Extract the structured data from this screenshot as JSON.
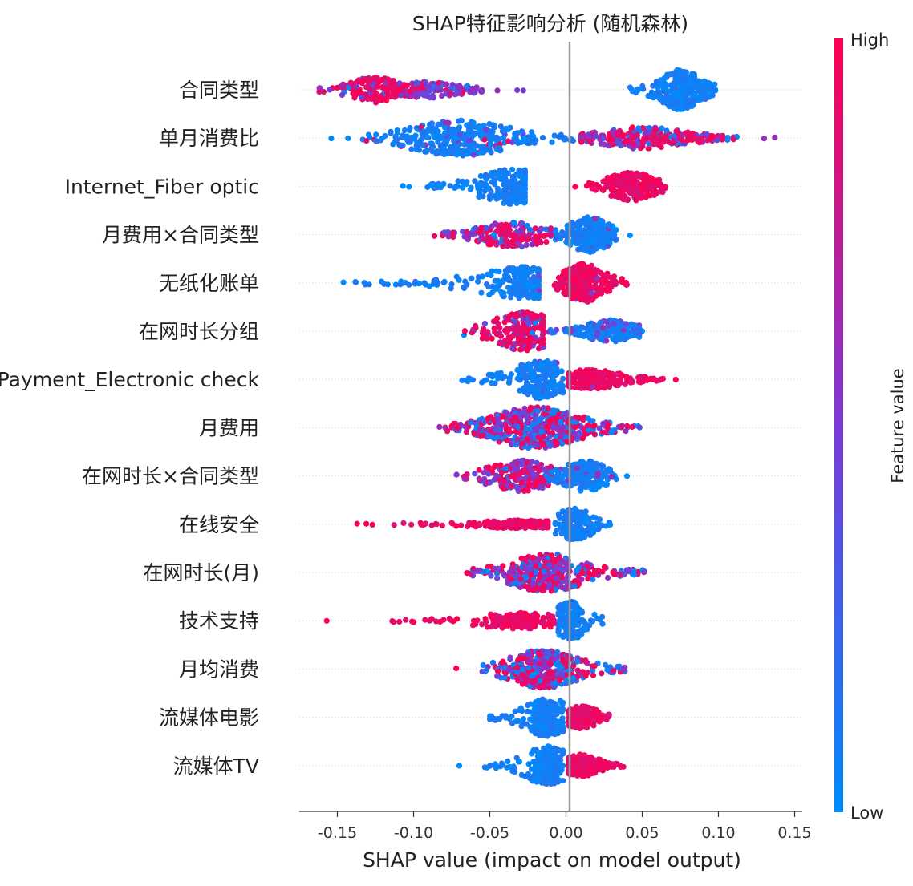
{
  "chart_data": {
    "type": "scatter",
    "subtype": "shap-beeswarm",
    "title": "SHAP特征影响分析 (随机森林)",
    "xlabel": "SHAP value (impact on model output)",
    "xlim": [
      -0.175,
      0.155
    ],
    "x_ticks": [
      -0.15,
      -0.1,
      -0.05,
      0.0,
      0.05,
      0.1,
      0.15
    ],
    "x_tick_labels": [
      "-0.15",
      "-0.10",
      "-0.05",
      "0.00",
      "0.05",
      "0.10",
      "0.15"
    ],
    "colorbar": {
      "label": "Feature value",
      "high_label": "High",
      "low_label": "Low",
      "high_color": "#ff0051",
      "mid_color": "#7b3bd6",
      "low_color": "#008bfb"
    },
    "zero_line_color": "#999999",
    "grid": false,
    "features": [
      {
        "name": "合同类型",
        "groups": [
          {
            "type": "spread",
            "min": -0.162,
            "max": -0.095,
            "center": -0.125,
            "sigma": 0.01,
            "tail": 0.015,
            "n": 170,
            "halfw": 16,
            "mix": [
              0.85,
              0.1,
              0.05
            ]
          },
          {
            "type": "spread",
            "min": -0.11,
            "max": -0.055,
            "center": -0.09,
            "sigma": 0.013,
            "tail": 0.02,
            "n": 130,
            "halfw": 10,
            "mix": [
              0.1,
              0.8,
              0.1
            ]
          },
          {
            "type": "spread",
            "min": 0.042,
            "max": 0.098,
            "center": 0.075,
            "sigma": 0.009,
            "tail": 0.012,
            "n": 260,
            "halfw": 25,
            "mix": [
              0.0,
              0.0,
              1.0
            ]
          }
        ],
        "outliers": [
          {
            "x": -0.045,
            "v": 0.6
          },
          {
            "x": -0.032,
            "v": 0.5
          },
          {
            "x": -0.028,
            "v": 0.5
          },
          {
            "x": 0.043,
            "v": 0.0
          },
          {
            "x": 0.047,
            "v": 0.0
          }
        ]
      },
      {
        "name": "单月消费比",
        "groups": [
          {
            "type": "spread",
            "min": -0.135,
            "max": 0.005,
            "center": -0.07,
            "sigma": 0.025,
            "tail": 0.03,
            "n": 330,
            "halfw": 22,
            "mix": [
              0.05,
              0.05,
              0.9
            ]
          },
          {
            "type": "spread",
            "min": 0.01,
            "max": 0.112,
            "center": 0.05,
            "sigma": 0.025,
            "tail": 0.025,
            "n": 260,
            "halfw": 14,
            "mix": [
              0.55,
              0.3,
              0.15
            ]
          }
        ],
        "outliers": [
          {
            "x": -0.154,
            "v": 0.0
          },
          {
            "x": -0.143,
            "v": 0.0
          },
          {
            "x": 0.13,
            "v": 0.6
          },
          {
            "x": 0.137,
            "v": 0.6
          }
        ]
      },
      {
        "name": "Internet_Fiber optic",
        "groups": [
          {
            "type": "spread",
            "min": -0.092,
            "max": -0.027,
            "center": -0.035,
            "sigma": 0.012,
            "tail": 0.02,
            "n": 220,
            "halfw": 22,
            "mix": [
              0.0,
              0.0,
              1.0
            ]
          },
          {
            "type": "spread",
            "min": 0.012,
            "max": 0.065,
            "center": 0.043,
            "sigma": 0.009,
            "tail": 0.015,
            "n": 220,
            "halfw": 18,
            "mix": [
              1.0,
              0.0,
              0.0
            ]
          }
        ],
        "outliers": [
          {
            "x": -0.107,
            "v": 0.0
          },
          {
            "x": -0.103,
            "v": 0.0
          },
          {
            "x": 0.006,
            "v": 1.0
          }
        ]
      },
      {
        "name": "月费用×合同类型",
        "groups": [
          {
            "type": "spread",
            "min": -0.09,
            "max": -0.01,
            "center": -0.035,
            "sigma": 0.015,
            "tail": 0.02,
            "n": 190,
            "halfw": 16,
            "mix": [
              0.6,
              0.3,
              0.1
            ]
          },
          {
            "type": "spread",
            "min": -0.008,
            "max": 0.033,
            "center": 0.015,
            "sigma": 0.008,
            "tail": 0.012,
            "n": 230,
            "halfw": 22,
            "mix": [
              0.0,
              0.05,
              0.95
            ]
          }
        ],
        "outliers": [
          {
            "x": 0.042,
            "v": 0.0
          }
        ]
      },
      {
        "name": "无纸化账单",
        "groups": [
          {
            "type": "spread",
            "min": -0.142,
            "max": -0.018,
            "center": -0.027,
            "sigma": 0.01,
            "tail": 0.03,
            "n": 230,
            "halfw": 20,
            "mix": [
              0.0,
              0.02,
              0.98
            ]
          },
          {
            "type": "spread",
            "min": -0.008,
            "max": 0.04,
            "center": 0.012,
            "sigma": 0.008,
            "tail": 0.012,
            "n": 260,
            "halfw": 24,
            "mix": [
              0.95,
              0.05,
              0.0
            ]
          }
        ],
        "outliers": [
          {
            "x": -0.146,
            "v": 0.0
          }
        ]
      },
      {
        "name": "在网时长分组",
        "groups": [
          {
            "type": "spread",
            "min": -0.068,
            "max": -0.015,
            "center": -0.027,
            "sigma": 0.008,
            "tail": 0.02,
            "n": 220,
            "halfw": 24,
            "mix": [
              0.75,
              0.2,
              0.05
            ]
          },
          {
            "type": "spread",
            "min": -0.015,
            "max": 0.048,
            "center": 0.03,
            "sigma": 0.012,
            "tail": 0.015,
            "n": 200,
            "halfw": 14,
            "mix": [
              0.0,
              0.25,
              0.75
            ]
          }
        ],
        "outliers": [
          {
            "x": 0.05,
            "v": 0.0
          }
        ]
      },
      {
        "name": "Payment_Electronic check",
        "groups": [
          {
            "type": "spread",
            "min": -0.072,
            "max": -0.002,
            "center": -0.016,
            "sigma": 0.007,
            "tail": 0.018,
            "n": 230,
            "halfw": 24,
            "mix": [
              0.0,
              0.02,
              0.98
            ]
          },
          {
            "type": "spread",
            "min": 0.002,
            "max": 0.068,
            "center": 0.015,
            "sigma": 0.012,
            "tail": 0.02,
            "n": 200,
            "halfw": 12,
            "mix": [
              0.98,
              0.02,
              0.0
            ]
          }
        ],
        "outliers": [
          {
            "x": 0.072,
            "v": 1.0
          }
        ]
      },
      {
        "name": "月费用",
        "groups": [
          {
            "type": "spread",
            "min": -0.08,
            "max": 0.05,
            "center": -0.02,
            "sigma": 0.018,
            "tail": 0.025,
            "n": 520,
            "halfw": 26,
            "mix": [
              0.4,
              0.3,
              0.3
            ]
          }
        ],
        "outliers": [
          {
            "x": -0.083,
            "v": 0.6
          }
        ]
      },
      {
        "name": "在网时长×合同类型",
        "groups": [
          {
            "type": "spread",
            "min": -0.072,
            "max": -0.01,
            "center": -0.03,
            "sigma": 0.011,
            "tail": 0.018,
            "n": 200,
            "halfw": 20,
            "mix": [
              0.55,
              0.4,
              0.05
            ]
          },
          {
            "type": "spread",
            "min": -0.012,
            "max": 0.033,
            "center": 0.012,
            "sigma": 0.008,
            "tail": 0.012,
            "n": 200,
            "halfw": 20,
            "mix": [
              0.0,
              0.05,
              0.95
            ]
          }
        ],
        "outliers": [
          {
            "x": 0.04,
            "v": 0.0
          }
        ]
      },
      {
        "name": "在线安全",
        "groups": [
          {
            "type": "spread",
            "min": -0.12,
            "max": -0.012,
            "center": -0.03,
            "sigma": 0.015,
            "tail": 0.03,
            "n": 180,
            "halfw": 5,
            "mix": [
              1.0,
              0.0,
              0.0
            ]
          },
          {
            "type": "spread",
            "min": -0.007,
            "max": 0.03,
            "center": 0.005,
            "sigma": 0.006,
            "tail": 0.012,
            "n": 170,
            "halfw": 20,
            "mix": [
              0.0,
              0.0,
              1.0
            ]
          }
        ],
        "outliers": [
          {
            "x": -0.137,
            "v": 1.0
          },
          {
            "x": -0.131,
            "v": 1.0
          },
          {
            "x": -0.127,
            "v": 1.0
          }
        ]
      },
      {
        "name": "在网时长(月)",
        "groups": [
          {
            "type": "spread",
            "min": -0.063,
            "max": 0.052,
            "center": -0.013,
            "sigma": 0.013,
            "tail": 0.022,
            "n": 380,
            "halfw": 24,
            "mix": [
              0.45,
              0.35,
              0.2
            ]
          }
        ],
        "outliers": [
          {
            "x": -0.065,
            "v": 1.0
          }
        ]
      },
      {
        "name": "技术支持",
        "groups": [
          {
            "type": "spread",
            "min": -0.115,
            "max": -0.008,
            "center": -0.03,
            "sigma": 0.012,
            "tail": 0.03,
            "n": 180,
            "halfw": 10,
            "mix": [
              1.0,
              0.0,
              0.0
            ]
          },
          {
            "type": "spread",
            "min": -0.005,
            "max": 0.025,
            "center": 0.003,
            "sigma": 0.005,
            "tail": 0.01,
            "n": 170,
            "halfw": 24,
            "mix": [
              0.0,
              0.0,
              1.0
            ]
          }
        ],
        "outliers": [
          {
            "x": -0.157,
            "v": 1.0
          }
        ]
      },
      {
        "name": "月均消费",
        "groups": [
          {
            "type": "spread",
            "min": -0.055,
            "max": 0.04,
            "center": -0.015,
            "sigma": 0.012,
            "tail": 0.02,
            "n": 400,
            "halfw": 24,
            "mix": [
              0.4,
              0.25,
              0.35
            ]
          }
        ],
        "outliers": [
          {
            "x": -0.072,
            "v": 1.0
          }
        ]
      },
      {
        "name": "流媒体电影",
        "groups": [
          {
            "type": "spread",
            "min": -0.05,
            "max": -0.002,
            "center": -0.012,
            "sigma": 0.006,
            "tail": 0.014,
            "n": 230,
            "halfw": 24,
            "mix": [
              0.0,
              0.0,
              1.0
            ]
          },
          {
            "type": "spread",
            "min": 0.002,
            "max": 0.03,
            "center": 0.01,
            "sigma": 0.006,
            "tail": 0.01,
            "n": 200,
            "halfw": 14,
            "mix": [
              1.0,
              0.0,
              0.0
            ]
          }
        ],
        "outliers": []
      },
      {
        "name": "流媒体TV",
        "groups": [
          {
            "type": "spread",
            "min": -0.055,
            "max": -0.002,
            "center": -0.012,
            "sigma": 0.006,
            "tail": 0.014,
            "n": 230,
            "halfw": 24,
            "mix": [
              0.0,
              0.0,
              1.0
            ]
          },
          {
            "type": "spread",
            "min": 0.002,
            "max": 0.038,
            "center": 0.01,
            "sigma": 0.006,
            "tail": 0.01,
            "n": 220,
            "halfw": 14,
            "mix": [
              1.0,
              0.0,
              0.0
            ]
          }
        ],
        "outliers": [
          {
            "x": -0.07,
            "v": 0.0
          }
        ]
      }
    ]
  }
}
